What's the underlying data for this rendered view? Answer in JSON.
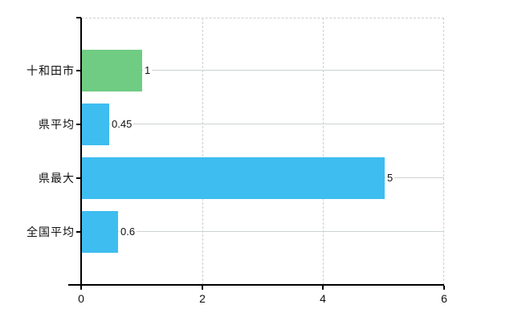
{
  "chart_data": {
    "type": "bar",
    "orientation": "horizontal",
    "title": "",
    "categories": [
      "十和田市",
      "県平均",
      "県最大",
      "全国平均"
    ],
    "values": [
      1,
      0.45,
      5,
      0.6
    ],
    "value_labels": [
      "1",
      "0.45",
      "5",
      "0.6"
    ],
    "bar_colors": [
      "#6fcc82",
      "#3ebdf0",
      "#3ebdf0",
      "#3ebdf0"
    ],
    "xlim": [
      0,
      6
    ],
    "xticks": [
      0,
      2,
      4,
      6
    ],
    "xtick_labels": [
      "0",
      "2",
      "4",
      "6"
    ],
    "grid": "on",
    "legend": "none",
    "colors": {
      "bar_green": "#6fcc82",
      "bar_blue": "#3ebdf0",
      "category_gridline": "#ccd3cc",
      "dashed_gridline": "#cfcfcf",
      "axis": "#000000",
      "text": "#111111",
      "background": "#ffffff"
    }
  }
}
